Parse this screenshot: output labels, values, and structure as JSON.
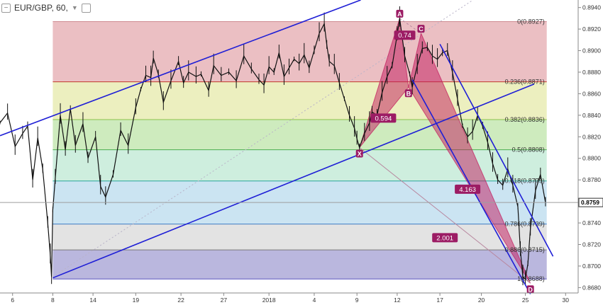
{
  "symbol": {
    "label": "EUR/GBP, 60,",
    "minus_icon": "minus-icon",
    "chevron_icon": "chevron-down-icon",
    "settings_icon": "square-icon"
  },
  "colors": {
    "trendline": "#1f1fd6",
    "pattern_fill": "#c2185b",
    "pattern_label": "#9c1c64",
    "price_line": "#9e9e9e"
  },
  "chart_data": {
    "type": "line",
    "x_ticks": [
      {
        "label": "6",
        "i": 0
      },
      {
        "label": "8",
        "i": 32
      },
      {
        "label": "14",
        "i": 64
      },
      {
        "label": "19",
        "i": 98
      },
      {
        "label": "22",
        "i": 134
      },
      {
        "label": "27",
        "i": 168
      },
      {
        "label": "2018",
        "i": 204
      },
      {
        "label": "4",
        "i": 240
      },
      {
        "label": "9",
        "i": 274
      },
      {
        "label": "12",
        "i": 306
      },
      {
        "label": "17",
        "i": 340
      },
      {
        "label": "20",
        "i": 373
      },
      {
        "label": "25",
        "i": 408
      },
      {
        "label": "30",
        "i": 440
      }
    ],
    "x_domain": [
      -10,
      450
    ],
    "ylim": [
      0.8675,
      0.8947
    ],
    "y_ticks": [
      0.868,
      0.87,
      0.872,
      0.874,
      0.876,
      0.878,
      0.88,
      0.882,
      0.884,
      0.886,
      0.888,
      0.89,
      0.892,
      0.894
    ],
    "current_price": 0.8759,
    "series": [
      {
        "i": [
          -10,
          -4,
          2,
          8,
          12,
          16,
          20,
          24,
          28,
          30,
          31,
          32,
          34,
          38,
          42,
          46,
          50,
          56,
          60,
          66,
          70,
          74,
          80,
          86,
          92,
          98,
          102,
          106,
          110,
          112,
          116,
          120,
          126,
          132,
          136,
          140,
          146,
          150,
          156,
          160,
          166,
          172,
          178,
          184,
          190,
          196,
          200,
          204,
          208,
          212,
          216,
          220,
          224,
          228,
          232,
          236,
          240,
          244,
          248,
          250,
          252,
          256,
          260,
          264,
          268,
          272,
          274,
          276,
          280,
          284,
          286,
          290,
          294,
          298,
          302,
          306,
          308,
          312,
          316,
          318,
          322,
          326,
          330,
          334,
          338,
          342,
          346,
          350,
          354,
          358,
          362,
          366,
          370,
          374,
          378,
          382,
          386,
          390,
          394,
          398,
          402,
          404,
          406,
          408,
          410,
          412,
          416,
          420,
          424
        ],
        "y": [
          0.8833,
          0.8842,
          0.8811,
          0.8823,
          0.883,
          0.878,
          0.8819,
          0.879,
          0.874,
          0.871,
          0.869,
          0.8752,
          0.8782,
          0.884,
          0.8808,
          0.8846,
          0.8812,
          0.8832,
          0.88,
          0.882,
          0.8774,
          0.8764,
          0.8785,
          0.8826,
          0.8812,
          0.8847,
          0.8864,
          0.8877,
          0.8875,
          0.8893,
          0.8878,
          0.8852,
          0.8872,
          0.889,
          0.887,
          0.888,
          0.8876,
          0.8878,
          0.8863,
          0.8886,
          0.8877,
          0.888,
          0.8872,
          0.8895,
          0.8883,
          0.8873,
          0.8868,
          0.8885,
          0.888,
          0.8898,
          0.8876,
          0.8884,
          0.8892,
          0.8888,
          0.8896,
          0.8884,
          0.89,
          0.8916,
          0.8925,
          0.8905,
          0.889,
          0.8886,
          0.887,
          0.8855,
          0.884,
          0.8828,
          0.8818,
          0.881,
          0.8823,
          0.8833,
          0.8843,
          0.884,
          0.8861,
          0.8876,
          0.8886,
          0.8915,
          0.893,
          0.8895,
          0.8878,
          0.8866,
          0.8886,
          0.8902,
          0.8903,
          0.8895,
          0.8892,
          0.8898,
          0.89,
          0.888,
          0.8855,
          0.883,
          0.882,
          0.8825,
          0.884,
          0.883,
          0.8815,
          0.8795,
          0.878,
          0.8775,
          0.879,
          0.8775,
          0.8755,
          0.8715,
          0.869,
          0.8688,
          0.8702,
          0.8735,
          0.877,
          0.8785,
          0.8759
        ]
      }
    ],
    "fib_levels": [
      {
        "label": "0(0.8927)",
        "value": 0.8927,
        "fill": "#e8b4b9",
        "line": "#cf8b92"
      },
      {
        "label": "0.236(0.8871)",
        "value": 0.8871,
        "fill": "#e9ecb4",
        "line": "#c0392b"
      },
      {
        "label": "0.382(0.8836)",
        "value": 0.8836,
        "fill": "#c6e8b3",
        "line": "#8bc34a"
      },
      {
        "label": "0.5(0.8808)",
        "value": 0.8808,
        "fill": "#c5ebd8",
        "line": "#4caf50"
      },
      {
        "label": "0.618(0.8779)",
        "value": 0.8779,
        "fill": "#c2dff0",
        "line": "#26a69a"
      },
      {
        "label": "0.786(0.8739)",
        "value": 0.8739,
        "fill": "#dedede",
        "line": "#3f7cc4"
      },
      {
        "label": "0.886(0.8715)",
        "value": 0.8715,
        "fill": "#aeaad8",
        "line": "#7a7a7a"
      },
      {
        "label": "1(0.8688)",
        "value": 0.8688,
        "fill": "#ffffff",
        "line": "#5c56c0"
      }
    ],
    "fib_start_i": 32,
    "fib_end_i": 425,
    "channel_lines": [
      {
        "i1": -10,
        "y1": 0.8821,
        "i2": 277,
        "y2": 0.8947
      },
      {
        "i1": 32,
        "y1": 0.8689,
        "i2": 415,
        "y2": 0.8869
      },
      {
        "i1": 340,
        "y1": 0.8906,
        "i2": 430,
        "y2": 0.8709
      },
      {
        "i1": 318,
        "y1": 0.8873,
        "i2": 412,
        "y2": 0.8674
      }
    ],
    "dotted_diagonal": {
      "i1": 32,
      "y1": 0.869,
      "i2": 365,
      "y2": 0.8946
    },
    "harmonic_points": [
      {
        "label": "X",
        "i": 276,
        "y": 0.881
      },
      {
        "label": "A",
        "i": 308,
        "y": 0.893
      },
      {
        "label": "B",
        "i": 315,
        "y": 0.8866
      },
      {
        "label": "C",
        "i": 325,
        "y": 0.8916
      },
      {
        "label": "D",
        "i": 412,
        "y": 0.8684
      }
    ],
    "ratio_labels": [
      {
        "label": "0.594",
        "i": 295,
        "y": 0.8837
      },
      {
        "label": "0.74",
        "i": 312,
        "y": 0.8914
      },
      {
        "label": "4.163",
        "i": 362,
        "y": 0.8771
      },
      {
        "label": "2.001",
        "i": 344,
        "y": 0.8726
      }
    ]
  }
}
